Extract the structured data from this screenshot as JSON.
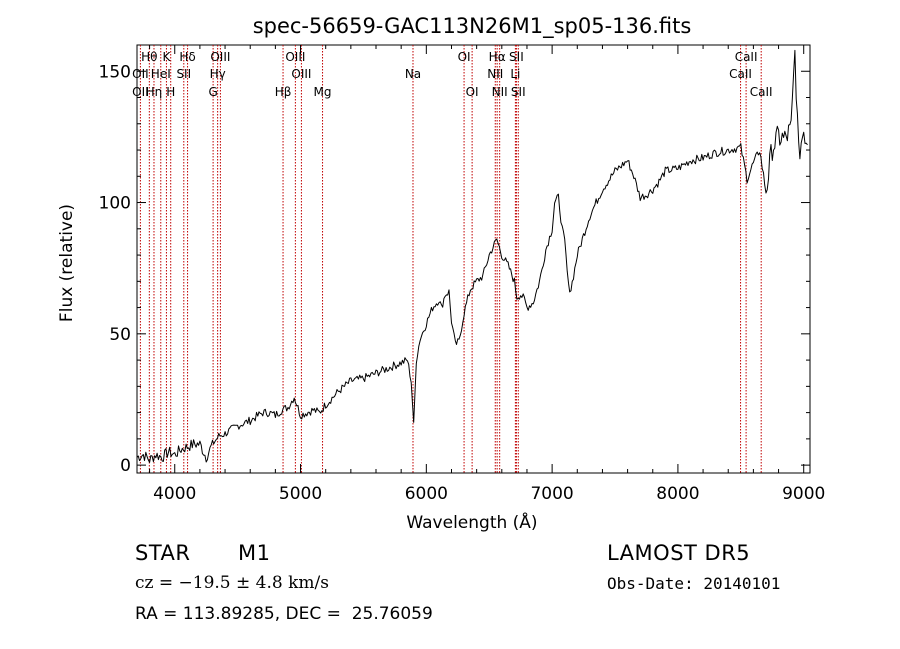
{
  "chart_data": {
    "type": "line",
    "title": "spec-56659-GAC113N26M1_sp05-136.fits",
    "xlabel": "Wavelength (Å)",
    "ylabel": "Flux (relative)",
    "xlim": [
      3700,
      9050
    ],
    "ylim": [
      -3,
      160
    ],
    "x_ticks": [
      4000,
      5000,
      6000,
      7000,
      8000,
      9000
    ],
    "y_ticks": [
      0,
      50,
      100,
      150
    ],
    "grid": false,
    "series": [
      {
        "color": "#000000",
        "points": [
          [
            3700,
            3
          ],
          [
            3750,
            4
          ],
          [
            3800,
            2
          ],
          [
            3850,
            4
          ],
          [
            3900,
            3
          ],
          [
            3950,
            5
          ],
          [
            4000,
            4
          ],
          [
            4050,
            6
          ],
          [
            4100,
            7
          ],
          [
            4150,
            8
          ],
          [
            4200,
            8
          ],
          [
            4250,
            3
          ],
          [
            4300,
            8
          ],
          [
            4350,
            11
          ],
          [
            4400,
            12
          ],
          [
            4500,
            15
          ],
          [
            4600,
            17
          ],
          [
            4700,
            20
          ],
          [
            4750,
            20
          ],
          [
            4800,
            19
          ],
          [
            4850,
            21
          ],
          [
            4900,
            22
          ],
          [
            4950,
            26
          ],
          [
            5000,
            19
          ],
          [
            5050,
            20
          ],
          [
            5100,
            21
          ],
          [
            5150,
            20
          ],
          [
            5200,
            23
          ],
          [
            5300,
            28
          ],
          [
            5400,
            32
          ],
          [
            5500,
            33
          ],
          [
            5600,
            35
          ],
          [
            5700,
            37
          ],
          [
            5800,
            39
          ],
          [
            5850,
            40
          ],
          [
            5880,
            32
          ],
          [
            5900,
            15
          ],
          [
            5920,
            40
          ],
          [
            5950,
            48
          ],
          [
            6000,
            54
          ],
          [
            6050,
            60
          ],
          [
            6100,
            63
          ],
          [
            6120,
            60
          ],
          [
            6150,
            65
          ],
          [
            6180,
            66
          ],
          [
            6200,
            55
          ],
          [
            6230,
            46
          ],
          [
            6260,
            47
          ],
          [
            6300,
            58
          ],
          [
            6350,
            67
          ],
          [
            6400,
            70
          ],
          [
            6450,
            72
          ],
          [
            6500,
            80
          ],
          [
            6540,
            84
          ],
          [
            6560,
            86
          ],
          [
            6600,
            80
          ],
          [
            6650,
            76
          ],
          [
            6700,
            70
          ],
          [
            6720,
            64
          ],
          [
            6750,
            65
          ],
          [
            6780,
            63
          ],
          [
            6800,
            60
          ],
          [
            6850,
            62
          ],
          [
            6900,
            70
          ],
          [
            6950,
            82
          ],
          [
            7000,
            90
          ],
          [
            7020,
            100
          ],
          [
            7050,
            102
          ],
          [
            7080,
            90
          ],
          [
            7100,
            85
          ],
          [
            7130,
            68
          ],
          [
            7150,
            67
          ],
          [
            7200,
            80
          ],
          [
            7300,
            95
          ],
          [
            7400,
            105
          ],
          [
            7500,
            112
          ],
          [
            7550,
            114
          ],
          [
            7600,
            116
          ],
          [
            7650,
            110
          ],
          [
            7700,
            102
          ],
          [
            7750,
            103
          ],
          [
            7800,
            105
          ],
          [
            7850,
            108
          ],
          [
            7900,
            112
          ],
          [
            8000,
            113
          ],
          [
            8100,
            116
          ],
          [
            8200,
            117
          ],
          [
            8300,
            119
          ],
          [
            8400,
            120
          ],
          [
            8500,
            121
          ],
          [
            8550,
            109
          ],
          [
            8600,
            115
          ],
          [
            8650,
            120
          ],
          [
            8700,
            104
          ],
          [
            8750,
            121
          ],
          [
            8800,
            125
          ],
          [
            8850,
            124
          ],
          [
            8900,
            128
          ],
          [
            8930,
            157
          ],
          [
            8960,
            118
          ],
          [
            9000,
            128
          ],
          [
            9030,
            122
          ]
        ]
      }
    ],
    "annotations": [
      {
        "label": "Hθ",
        "x": 3798,
        "row": 0
      },
      {
        "label": "OII",
        "x": 3727,
        "row": 1
      },
      {
        "label": "OII",
        "x": 3727,
        "row": 2
      },
      {
        "label": "Hη",
        "x": 3835,
        "row": 2
      },
      {
        "label": "HeI",
        "x": 3889,
        "row": 1
      },
      {
        "label": "K",
        "x": 3934,
        "row": 0
      },
      {
        "label": "H",
        "x": 3968,
        "row": 2
      },
      {
        "label": "Hδ",
        "x": 4102,
        "row": 0
      },
      {
        "label": "SII",
        "x": 4072,
        "row": 1
      },
      {
        "label": "OIII",
        "x": 4363,
        "row": 0
      },
      {
        "label": "Hγ",
        "x": 4341,
        "row": 1
      },
      {
        "label": "G",
        "x": 4305,
        "row": 2
      },
      {
        "label": "Hβ",
        "x": 4861,
        "row": 2
      },
      {
        "label": "OIII",
        "x": 4959,
        "row": 0
      },
      {
        "label": "OIII",
        "x": 5007,
        "row": 1
      },
      {
        "label": "Mg",
        "x": 5175,
        "row": 2
      },
      {
        "label": "Na",
        "x": 5894,
        "row": 1
      },
      {
        "label": "OI",
        "x": 6300,
        "row": 0
      },
      {
        "label": "OI",
        "x": 6364,
        "row": 2
      },
      {
        "label": "Hα",
        "x": 6563,
        "row": 0
      },
      {
        "label": "NII",
        "x": 6548,
        "row": 1
      },
      {
        "label": "NII",
        "x": 6583,
        "row": 2
      },
      {
        "label": "SII",
        "x": 6716,
        "row": 0
      },
      {
        "label": "Li",
        "x": 6708,
        "row": 1
      },
      {
        "label": "SII",
        "x": 6731,
        "row": 2
      },
      {
        "label": "CaII",
        "x": 8542,
        "row": 0
      },
      {
        "label": "CaII",
        "x": 8498,
        "row": 1
      },
      {
        "label": "CaII",
        "x": 8662,
        "row": 2
      }
    ]
  },
  "info": {
    "class": "STAR",
    "subclass": "M1",
    "survey": "LAMOST DR5",
    "cz": "cz = −19.5 ± 4.8 km/s",
    "obs_date": "Obs-Date: 20140101",
    "coords": "RA = 113.89285, DEC =  25.76059"
  }
}
